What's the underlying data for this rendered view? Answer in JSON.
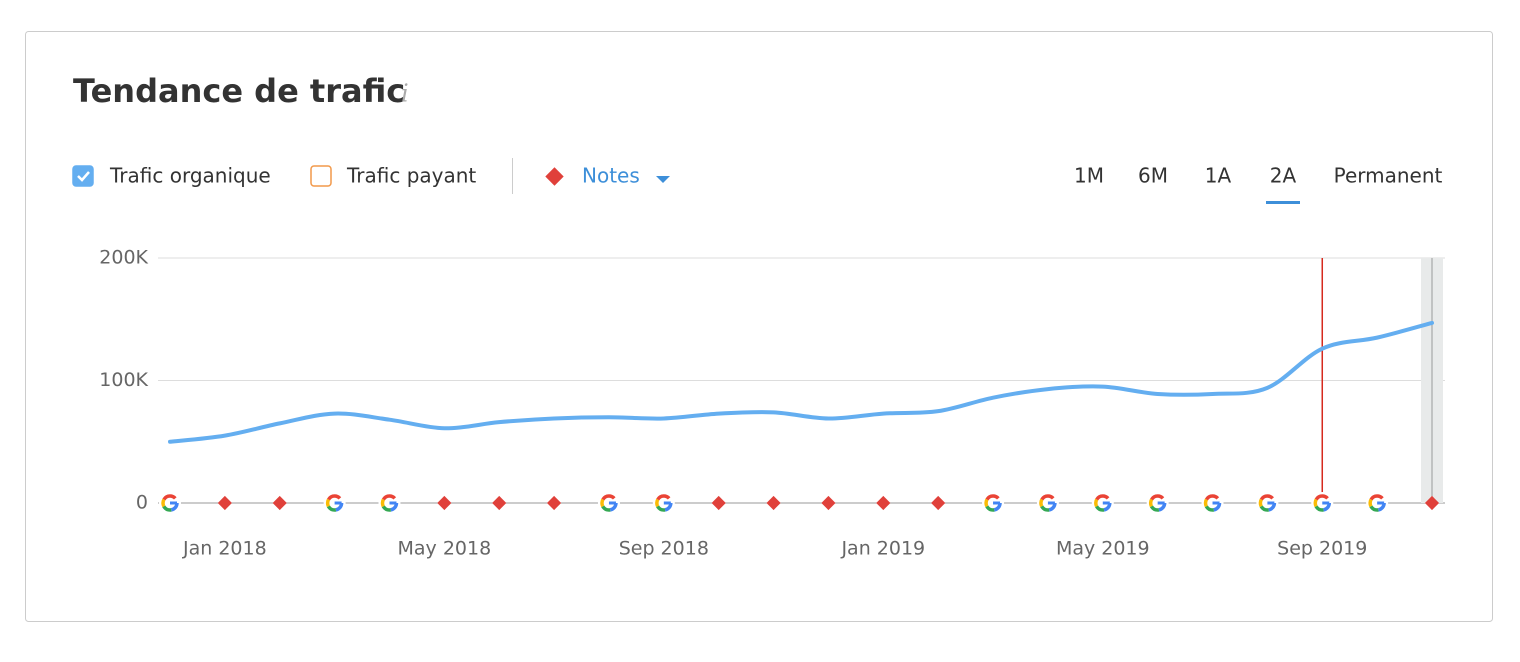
{
  "header": {
    "title": "Tendance de trafic",
    "info_icon": "i",
    "notes_label": "Notes",
    "periods": [
      "1M",
      "6M",
      "1A",
      "2A",
      "Permanent"
    ],
    "active_period": 3
  },
  "chart_data": {
    "type": "line",
    "categories": [
      null,
      "Jan 2018",
      null,
      null,
      null,
      "May 2018",
      null,
      null,
      null,
      "Sep 2018",
      null,
      null,
      null,
      "Jan 2019",
      null,
      null,
      null,
      "May 2019",
      null,
      null,
      null,
      "Sep 2019",
      null,
      null
    ],
    "series": [
      {
        "name": "Trafic organique",
        "color": "#64aef0",
        "checked": true,
        "values": [
          50000,
          55000,
          65000,
          73000,
          68000,
          61000,
          66000,
          69000,
          70000,
          69000,
          73000,
          74000,
          69000,
          73000,
          75000,
          86000,
          93000,
          95000,
          89000,
          89000,
          94000,
          126000,
          135000,
          147000
        ]
      }
    ],
    "hidden_series": [
      {
        "name": "Trafic payant",
        "color": "#f2994a",
        "checked": false
      }
    ],
    "event_markers": [
      "google",
      "note",
      "note",
      "google",
      "google",
      "note",
      "note",
      "note",
      "google",
      "google",
      "note",
      "note",
      "note",
      "note",
      "note",
      "google",
      "google",
      "google",
      "google",
      "google",
      "google",
      "google",
      "google",
      "note"
    ],
    "ylim": [
      0,
      200000
    ],
    "yticks": [
      0,
      {
        "value": 100000,
        "label": "100K"
      },
      {
        "value": 200000,
        "label": "200K"
      }
    ],
    "grid": true
  }
}
